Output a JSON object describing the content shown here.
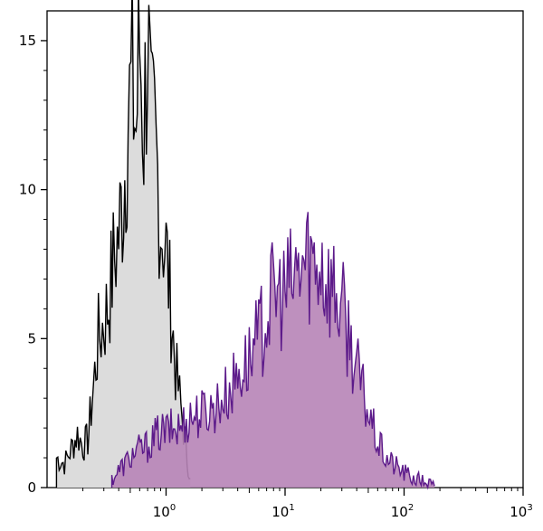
{
  "chart_data": {
    "type": "area",
    "x_scale": "log",
    "xlim": [
      0.1,
      1000
    ],
    "ylim": [
      0,
      16
    ],
    "grid": false,
    "legend": "none",
    "title": "",
    "xlabel": "",
    "ylabel": "",
    "y_ticks": [
      {
        "value": 0,
        "label": "0"
      },
      {
        "value": 5,
        "label": "5"
      },
      {
        "value": 10,
        "label": "10"
      },
      {
        "value": 15,
        "label": "15"
      }
    ],
    "x_ticks": [
      {
        "value": 1,
        "base": "10",
        "exp": "0"
      },
      {
        "value": 10,
        "base": "10",
        "exp": "1"
      },
      {
        "value": 100,
        "base": "10",
        "exp": "2"
      },
      {
        "value": 1000,
        "base": "10",
        "exp": "3"
      }
    ],
    "series": [
      {
        "key": "control",
        "fill": "#dcdcdc",
        "stroke": "#000000",
        "x": [
          0.12,
          0.14,
          0.16,
          0.18,
          0.2,
          0.22,
          0.24,
          0.27,
          0.3,
          0.33,
          0.36,
          0.4,
          0.44,
          0.48,
          0.52,
          0.56,
          0.6,
          0.65,
          0.7,
          0.75,
          0.8,
          0.85,
          0.9,
          0.95,
          1.0,
          1.1,
          1.2,
          1.3,
          1.4,
          1.5,
          1.6
        ],
        "y": [
          1.0,
          0.8,
          1.3,
          1.8,
          1.4,
          1.6,
          3.0,
          5.0,
          5.5,
          6.2,
          7.5,
          8.5,
          10.0,
          12.5,
          13.5,
          12.0,
          15.0,
          12.0,
          15.3,
          11.5,
          12.0,
          10.5,
          9.0,
          8.5,
          8.0,
          6.0,
          4.0,
          3.0,
          2.0,
          1.0,
          0.3
        ]
      },
      {
        "key": "stained",
        "fill": "#b784b7",
        "stroke": "#5c1a8a",
        "x": [
          0.35,
          0.45,
          0.55,
          0.7,
          0.85,
          1.0,
          1.3,
          1.6,
          2.0,
          2.5,
          3.0,
          3.5,
          4.0,
          5.0,
          6.0,
          7.0,
          8.0,
          10.0,
          12.0,
          14.0,
          16.0,
          18.0,
          20.0,
          22.0,
          25.0,
          30.0,
          35.0,
          40.0,
          50.0,
          60.0,
          70.0,
          80.0,
          100.0,
          120.0,
          150.0,
          180.0
        ],
        "y": [
          0.3,
          0.8,
          1.2,
          1.4,
          1.8,
          1.9,
          2.0,
          2.4,
          2.5,
          2.7,
          3.0,
          3.3,
          3.8,
          4.3,
          5.0,
          5.8,
          6.5,
          6.5,
          7.0,
          7.5,
          7.8,
          7.5,
          7.8,
          7.0,
          6.8,
          6.0,
          5.0,
          4.0,
          2.5,
          1.5,
          1.0,
          0.8,
          0.5,
          0.3,
          0.2,
          0.05
        ]
      }
    ]
  }
}
